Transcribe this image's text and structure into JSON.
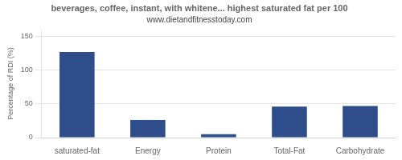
{
  "chart_data": {
    "type": "bar",
    "title": "beverages, coffee, instant, with whitene... highest saturated fat per 100",
    "subtitle": "www.dietandfitnesstoday.com",
    "categories": [
      "saturated-fat",
      "Energy",
      "Protein",
      "Total-Fat",
      "Carbohydrate"
    ],
    "values": [
      127,
      26,
      5,
      46,
      47
    ],
    "color": "#2e4d8a",
    "ylabel": "Percentage of RDI (%)",
    "ylim": [
      0,
      160
    ],
    "yticks": [
      0,
      50,
      100,
      150
    ],
    "grid": true
  }
}
